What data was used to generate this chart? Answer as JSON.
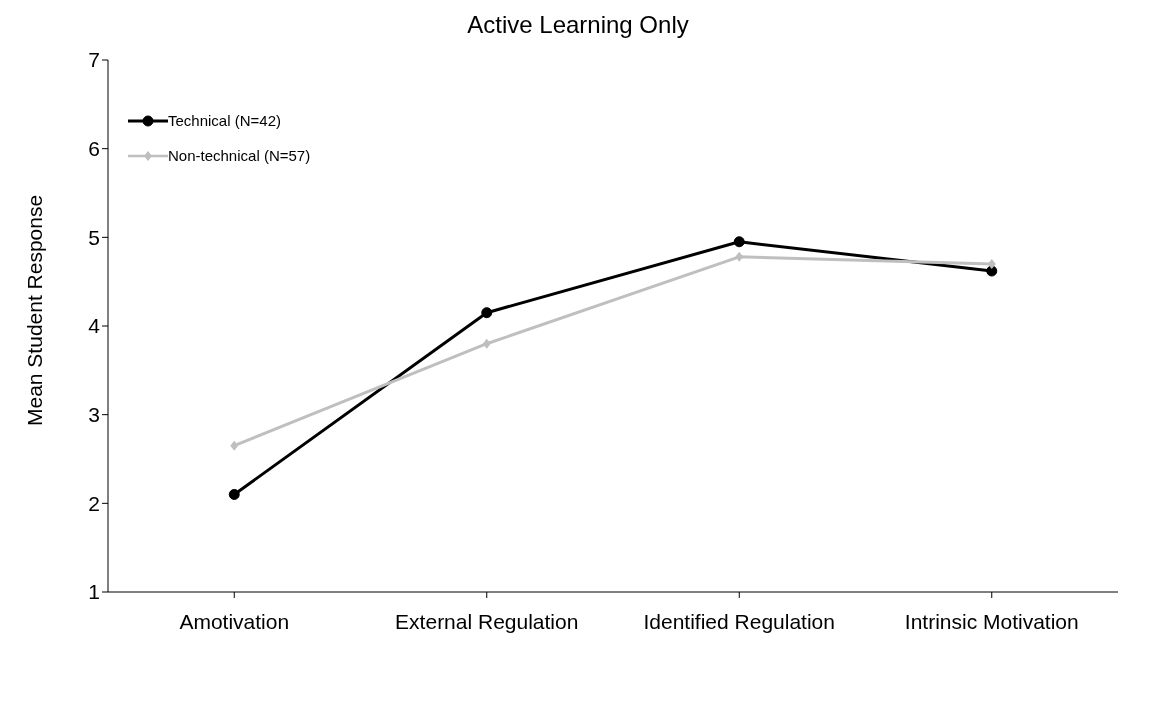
{
  "chart_data": {
    "type": "line",
    "title": "Active Learning Only",
    "ylabel": "Mean Student Response",
    "categories": [
      "Amotivation",
      "External Regulation",
      "Identified Regulation",
      "Intrinsic Motivation"
    ],
    "series": [
      {
        "name": "Technical (N=42)",
        "color": "#000000",
        "marker": "circle",
        "values": [
          2.1,
          4.15,
          4.95,
          4.62
        ]
      },
      {
        "name": "Non-technical (N=57)",
        "color": "#bfbfbf",
        "marker": "diamond",
        "values": [
          2.65,
          3.8,
          4.78,
          4.7
        ]
      }
    ],
    "ylim": [
      1,
      7
    ],
    "yticks": [
      1,
      2,
      3,
      4,
      5,
      6,
      7
    ],
    "grid": false,
    "legend": "top left",
    "line_style": "solid"
  }
}
